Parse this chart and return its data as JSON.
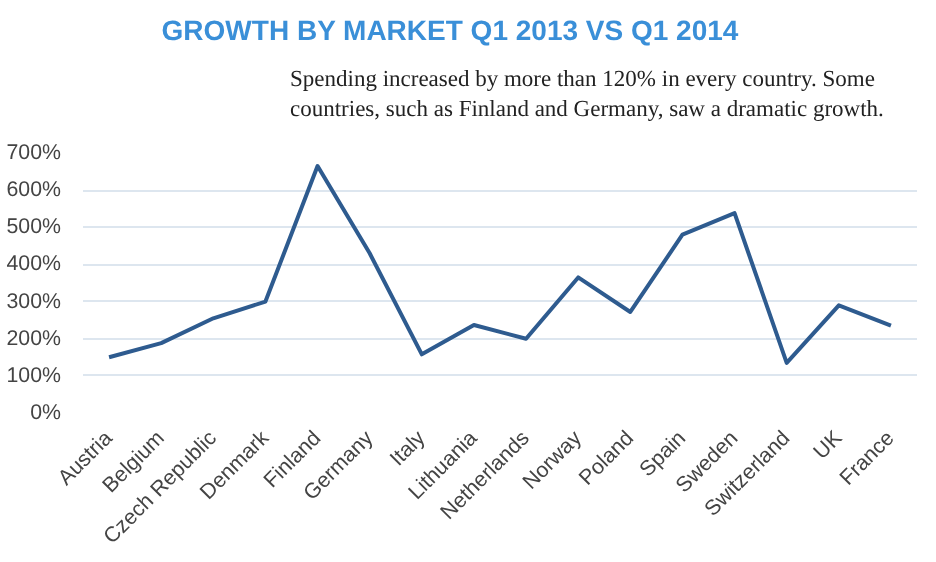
{
  "chart_data": {
    "type": "line",
    "title": "GROWTH BY MARKET Q1 2013 VS Q1 2014",
    "annotations": [
      "Spending increased by more than 120% in every country. Some countries, such as Finland and Germany, saw a dramatic growth."
    ],
    "categories": [
      "Austria",
      "Belgium",
      "Czech Republic",
      "Denmark",
      "Finland",
      "Germany",
      "Italy",
      "Lithuania",
      "Netherlands",
      "Norway",
      "Poland",
      "Spain",
      "Sweden",
      "Switzerland",
      "UK",
      "France"
    ],
    "series": [
      {
        "color": "#2e5b8f",
        "values": [
          150,
          188,
          255,
          300,
          665,
          430,
          158,
          237,
          200,
          365,
          272,
          480,
          538,
          135,
          290,
          235
        ]
      }
    ],
    "ylim": [
      0,
      700
    ],
    "yticks": [
      {
        "value": 0,
        "label": "0%"
      },
      {
        "value": 100,
        "label": "100%"
      },
      {
        "value": 200,
        "label": "200%"
      },
      {
        "value": 300,
        "label": "300%"
      },
      {
        "value": 400,
        "label": "400%"
      },
      {
        "value": 500,
        "label": "500%"
      },
      {
        "value": 600,
        "label": "600%"
      },
      {
        "value": 700,
        "label": "700%"
      }
    ],
    "grid": "y",
    "marker": "none",
    "line_style": "solid"
  }
}
